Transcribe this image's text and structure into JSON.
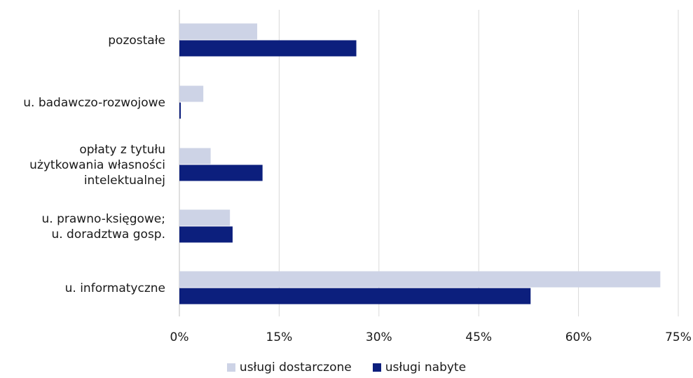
{
  "chart_data": {
    "type": "bar",
    "orientation": "horizontal",
    "categories": [
      [
        "pozostałe"
      ],
      [
        "u. badawczo-rozwojowe"
      ],
      [
        "opłaty z tytułu",
        "użytkowania własności",
        "intelektualnej"
      ],
      [
        "u. prawno-księgowe;",
        "u. doradztwa gosp."
      ],
      [
        "u. informatyczne"
      ]
    ],
    "series": [
      {
        "name": "usługi dostarczone",
        "color": "#cdd3e6",
        "values": [
          11.7,
          3.6,
          4.7,
          7.6,
          72.3
        ]
      },
      {
        "name": "usługi nabyte",
        "color": "#0c1f7d",
        "values": [
          26.6,
          0.2,
          12.5,
          8.0,
          52.8
        ]
      }
    ],
    "xlim": [
      0,
      75
    ],
    "xticks": [
      0,
      15,
      30,
      45,
      60,
      75
    ],
    "xtick_labels": [
      "0%",
      "15%",
      "30%",
      "45%",
      "60%",
      "75%"
    ],
    "grid": true,
    "legend_position": "bottom"
  }
}
